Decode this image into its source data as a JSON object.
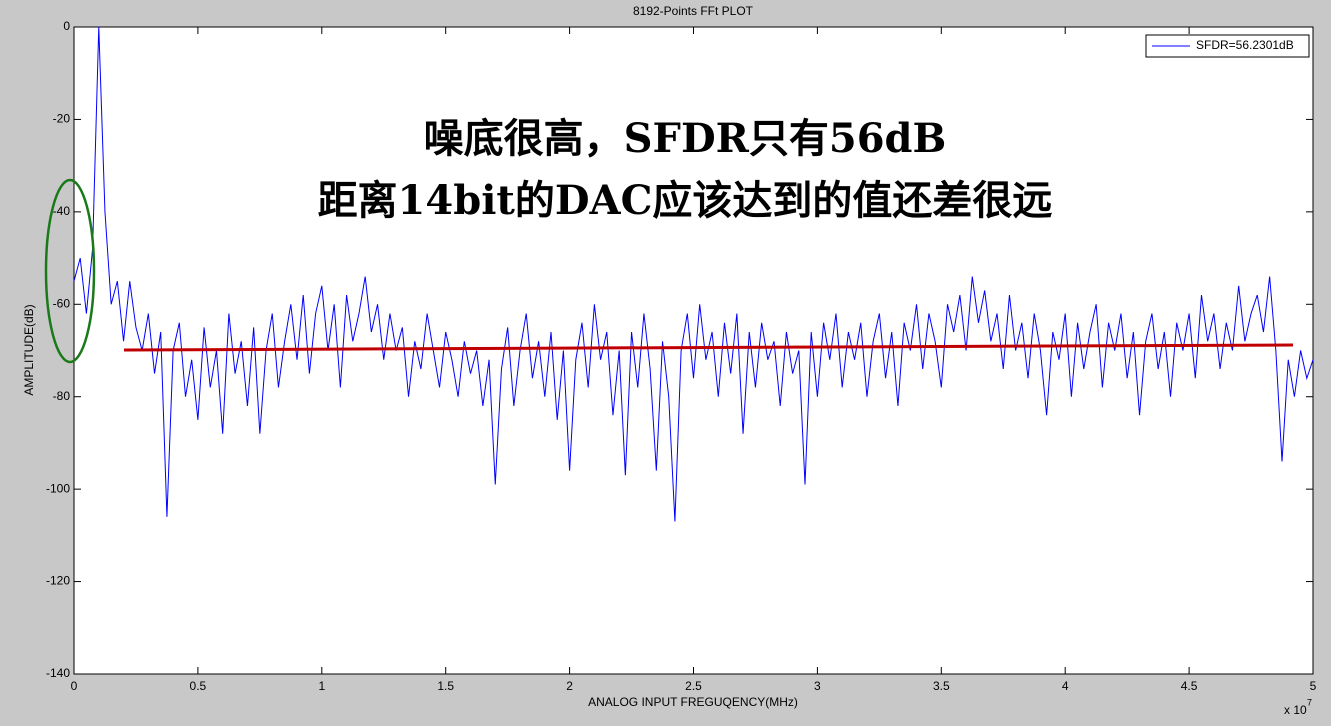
{
  "chart_data": {
    "type": "line",
    "title": "8192-Points FFt PLOT",
    "x_label": "ANALOG INPUT FREGUQENCY(MHz)",
    "y_label": "AMPLITUDE(dB)",
    "x_multiplier": "x 10",
    "x_exponent": "7",
    "annotations": [
      "噪底很高，SFDR只有56dB",
      "距离14bit的DAC应该达到的值还差很远"
    ],
    "annotation_color": "#ee0000",
    "legend": "top-right",
    "grid": false,
    "xlim": [
      0,
      5
    ],
    "xticks": [
      0,
      0.5,
      1,
      1.5,
      2,
      2.5,
      3,
      3.5,
      4,
      4.5,
      5
    ],
    "ylim": [
      -140,
      0
    ],
    "yticks": [
      -140,
      -120,
      -100,
      -80,
      -60,
      -40,
      -20,
      0
    ],
    "x": [
      0,
      0.025,
      0.05,
      0.075,
      0.1,
      0.125,
      0.15,
      0.175,
      0.2,
      0.225,
      0.25,
      0.275,
      0.3,
      0.325,
      0.35,
      0.375,
      0.4,
      0.425,
      0.45,
      0.475,
      0.5,
      0.525,
      0.55,
      0.575,
      0.6,
      0.625,
      0.65,
      0.675,
      0.7,
      0.725,
      0.75,
      0.775,
      0.8,
      0.825,
      0.85,
      0.875,
      0.9,
      0.925,
      0.95,
      0.975,
      1,
      1.025,
      1.05,
      1.075,
      1.1,
      1.125,
      1.15,
      1.175,
      1.2,
      1.225,
      1.25,
      1.275,
      1.3,
      1.325,
      1.35,
      1.375,
      1.4,
      1.425,
      1.45,
      1.475,
      1.5,
      1.525,
      1.55,
      1.575,
      1.6,
      1.625,
      1.65,
      1.675,
      1.7,
      1.725,
      1.75,
      1.775,
      1.8,
      1.825,
      1.85,
      1.875,
      1.9,
      1.925,
      1.95,
      1.975,
      2,
      2.025,
      2.05,
      2.075,
      2.1,
      2.125,
      2.15,
      2.175,
      2.2,
      2.225,
      2.25,
      2.275,
      2.3,
      2.325,
      2.35,
      2.375,
      2.4,
      2.425,
      2.45,
      2.475,
      2.5,
      2.525,
      2.55,
      2.575,
      2.6,
      2.625,
      2.65,
      2.675,
      2.7,
      2.725,
      2.75,
      2.775,
      2.8,
      2.825,
      2.85,
      2.875,
      2.9,
      2.925,
      2.95,
      2.975,
      3,
      3.025,
      3.05,
      3.075,
      3.1,
      3.125,
      3.15,
      3.175,
      3.2,
      3.225,
      3.25,
      3.275,
      3.3,
      3.325,
      3.35,
      3.375,
      3.4,
      3.425,
      3.45,
      3.475,
      3.5,
      3.525,
      3.55,
      3.575,
      3.6,
      3.625,
      3.65,
      3.675,
      3.7,
      3.725,
      3.75,
      3.775,
      3.8,
      3.825,
      3.85,
      3.875,
      3.9,
      3.925,
      3.95,
      3.975,
      4,
      4.025,
      4.05,
      4.075,
      4.1,
      4.125,
      4.15,
      4.175,
      4.2,
      4.225,
      4.25,
      4.275,
      4.3,
      4.325,
      4.35,
      4.375,
      4.4,
      4.425,
      4.45,
      4.475,
      4.5,
      4.525,
      4.55,
      4.575,
      4.6,
      4.625,
      4.65,
      4.675,
      4.7,
      4.725,
      4.75,
      4.775,
      4.8,
      4.825,
      4.85,
      4.875,
      4.9,
      4.925,
      4.95,
      4.975,
      5
    ],
    "series": [
      {
        "name": "SFDR=56.2301dB",
        "color": "#0000ff",
        "values": [
          -55,
          -50,
          -62,
          -48,
          0,
          -40,
          -60,
          -55,
          -68,
          -55,
          -65,
          -70,
          -62,
          -75,
          -66,
          -106,
          -70,
          -64,
          -80,
          -72,
          -85,
          -65,
          -78,
          -70,
          -88,
          -62,
          -75,
          -68,
          -82,
          -65,
          -88,
          -70,
          -62,
          -78,
          -68,
          -60,
          -72,
          -58,
          -75,
          -62,
          -56,
          -70,
          -60,
          -78,
          -58,
          -68,
          -62,
          -54,
          -66,
          -60,
          -72,
          -62,
          -70,
          -65,
          -80,
          -68,
          -74,
          -62,
          -70,
          -78,
          -66,
          -72,
          -80,
          -68,
          -75,
          -70,
          -82,
          -72,
          -99,
          -74,
          -65,
          -82,
          -70,
          -62,
          -76,
          -68,
          -80,
          -66,
          -85,
          -70,
          -96,
          -72,
          -64,
          -78,
          -60,
          -72,
          -66,
          -84,
          -70,
          -97,
          -66,
          -78,
          -62,
          -74,
          -96,
          -68,
          -80,
          -107,
          -70,
          -62,
          -76,
          -60,
          -72,
          -66,
          -80,
          -64,
          -75,
          -62,
          -88,
          -66,
          -78,
          -64,
          -72,
          -68,
          -82,
          -66,
          -75,
          -70,
          -99,
          -66,
          -80,
          -64,
          -72,
          -62,
          -78,
          -66,
          -72,
          -64,
          -80,
          -68,
          -62,
          -76,
          -66,
          -82,
          -64,
          -70,
          -60,
          -74,
          -62,
          -68,
          -78,
          -60,
          -66,
          -58,
          -70,
          -54,
          -64,
          -57,
          -68,
          -62,
          -74,
          -58,
          -70,
          -64,
          -76,
          -62,
          -70,
          -84,
          -66,
          -72,
          -62,
          -80,
          -64,
          -74,
          -66,
          -60,
          -78,
          -64,
          -70,
          -62,
          -76,
          -66,
          -84,
          -68,
          -62,
          -74,
          -66,
          -80,
          -64,
          -70,
          -62,
          -76,
          -58,
          -68,
          -62,
          -74,
          -64,
          -70,
          -56,
          -68,
          -62,
          -58,
          -66,
          -54,
          -70,
          -94,
          -72,
          -80,
          -70,
          -76,
          -72
        ]
      }
    ]
  }
}
